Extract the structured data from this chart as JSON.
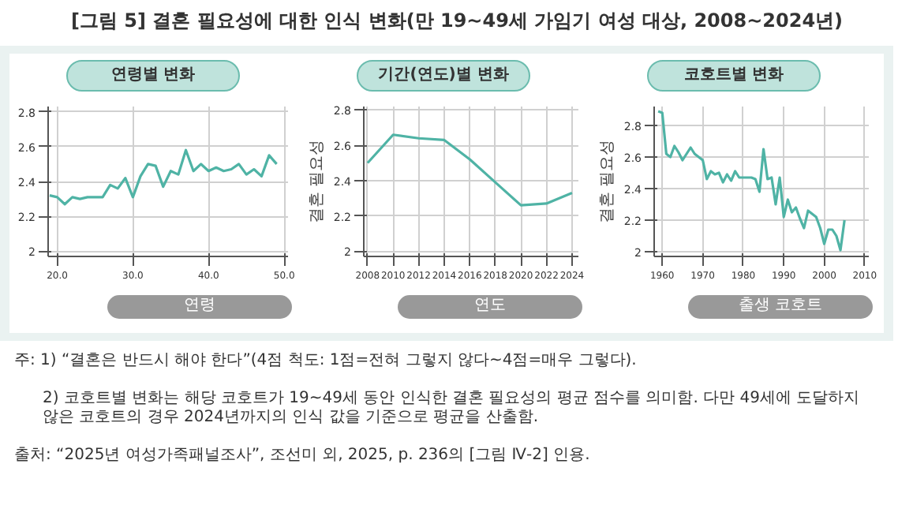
{
  "chart_data": [
    {
      "type": "line",
      "title": "연령별 변화",
      "xlabel": "연령",
      "grid": true,
      "marker": "none",
      "line_style": "solid",
      "annotations": [
        "[그림 5] 결혼 필요성에 대한 인식 변화(만 19~49세 가임기 여성 대상, 2008~2024년)",
        "주: 1) “결혼은 반드시 해야 한다”(4점 척도: 1점=전혀 그렇지 않다~4점=매우 그렇다).",
        "2) 코호트별 변화는 해당 코호트가 19~49세 동안 인식한 결혼 필요성의 평균 점수를 의미함. 다만 49세에 도달하지 않은 코호트의 경우 2024년까지의 인식 값을 기준으로 평균을 산출함.",
        "출처: “2025년 여성가족패널조사”, 조선미 외, 2025, p. 236의 [그림 Ⅳ-2] 인용."
      ],
      "x": [
        19,
        20,
        21,
        22,
        23,
        24,
        25,
        26,
        27,
        28,
        29,
        30,
        31,
        32,
        33,
        34,
        35,
        36,
        37,
        38,
        39,
        40,
        41,
        42,
        43,
        44,
        45,
        46,
        47,
        48,
        49
      ],
      "series": [
        {
          "color": "#4fb3a5",
          "values": [
            2.32,
            2.31,
            2.27,
            2.31,
            2.3,
            2.31,
            2.31,
            2.31,
            2.38,
            2.36,
            2.42,
            2.31,
            2.43,
            2.5,
            2.49,
            2.37,
            2.46,
            2.44,
            2.58,
            2.46,
            2.5,
            2.46,
            2.48,
            2.46,
            2.47,
            2.5,
            2.44,
            2.47,
            2.43,
            2.55,
            2.5
          ]
        }
      ],
      "xlim": [
        18.8,
        50.5
      ],
      "xticks": [
        {
          "value": 20,
          "label": "20.0"
        },
        {
          "value": 30,
          "label": "30.0"
        },
        {
          "value": 40,
          "label": "40.0"
        },
        {
          "value": 50,
          "label": "50.0"
        }
      ],
      "ylim": [
        1.97,
        2.83
      ],
      "yticks": [
        2,
        2.2,
        2.4,
        2.6,
        2.8
      ]
    },
    {
      "type": "line",
      "title": "기간(연도)별 변화",
      "xlabel": "연도",
      "ylabel": "결혼 필요성",
      "grid": true,
      "marker": "none",
      "line_style": "solid",
      "x": [
        2008,
        2010,
        2012,
        2014,
        2016,
        2018,
        2020,
        2022,
        2024
      ],
      "series": [
        {
          "color": "#4fb3a5",
          "values": [
            2.5,
            2.66,
            2.64,
            2.63,
            2.52,
            2.39,
            2.26,
            2.27,
            2.33
          ]
        }
      ],
      "xlim": [
        2007.7,
        2024.5
      ],
      "xticks": [
        2008,
        2010,
        2012,
        2014,
        2016,
        2018,
        2020,
        2022,
        2024
      ],
      "ylim": [
        1.97,
        2.82
      ],
      "yticks": [
        2,
        2.2,
        2.4,
        2.6,
        2.8
      ]
    },
    {
      "type": "line",
      "title": "코호트별 변화",
      "xlabel": "출생 코호트",
      "ylabel": "결혼 필요성",
      "grid": true,
      "marker": "none",
      "line_style": "solid",
      "x": [
        1959,
        1960,
        1961,
        1962,
        1963,
        1964,
        1965,
        1966,
        1967,
        1968,
        1969,
        1970,
        1971,
        1972,
        1973,
        1974,
        1975,
        1976,
        1977,
        1978,
        1979,
        1980,
        1981,
        1982,
        1983,
        1984,
        1985,
        1986,
        1987,
        1988,
        1989,
        1990,
        1991,
        1992,
        1993,
        1994,
        1995,
        1996,
        1997,
        1998,
        1999,
        2000,
        2001,
        2002,
        2003,
        2004,
        2005
      ],
      "series": [
        {
          "color": "#4fb3a5",
          "values": [
            2.89,
            2.88,
            2.62,
            2.6,
            2.67,
            2.63,
            2.58,
            2.62,
            2.66,
            2.62,
            2.6,
            2.58,
            2.46,
            2.51,
            2.49,
            2.5,
            2.44,
            2.49,
            2.45,
            2.51,
            2.47,
            2.47,
            2.47,
            2.47,
            2.46,
            2.38,
            2.65,
            2.46,
            2.47,
            2.3,
            2.47,
            2.22,
            2.33,
            2.25,
            2.28,
            2.21,
            2.15,
            2.26,
            2.24,
            2.22,
            2.15,
            2.05,
            2.14,
            2.14,
            2.1,
            2.01,
            2.2
          ]
        }
      ],
      "xlim": [
        1958,
        2011
      ],
      "xticks": [
        1960,
        1970,
        1980,
        1990,
        2000,
        2010
      ],
      "ylim": [
        1.97,
        2.92
      ],
      "yticks": [
        2,
        2.2,
        2.4,
        2.6,
        2.8
      ]
    }
  ]
}
